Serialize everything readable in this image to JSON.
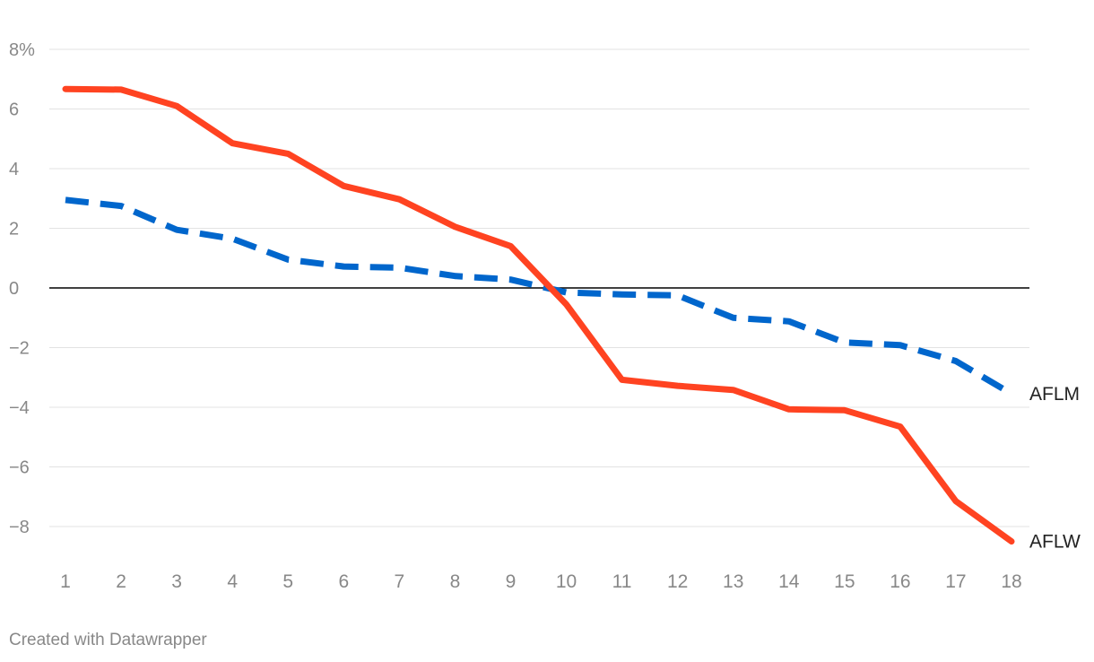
{
  "chart_data": {
    "type": "line",
    "title": "",
    "xlabel": "",
    "ylabel": "",
    "x": [
      1,
      2,
      3,
      4,
      5,
      6,
      7,
      8,
      9,
      10,
      11,
      12,
      13,
      14,
      15,
      16,
      17,
      18
    ],
    "x_tick_labels": [
      "1",
      "2",
      "3",
      "4",
      "5",
      "6",
      "7",
      "8",
      "9",
      "10",
      "11",
      "12",
      "13",
      "14",
      "15",
      "16",
      "17",
      "18"
    ],
    "ylim": [
      -9,
      8
    ],
    "y_ticks": [
      8,
      6,
      4,
      2,
      0,
      -2,
      -4,
      -6,
      -8
    ],
    "y_tick_labels": [
      "8%",
      "6",
      "4",
      "2",
      "0",
      "−2",
      "−4",
      "−6",
      "−8"
    ],
    "grid": true,
    "series": [
      {
        "name": "AFLW",
        "label": "AFLW",
        "color": "#ff4321",
        "style": "solid",
        "values": [
          6.67,
          6.65,
          6.1,
          4.85,
          4.5,
          3.42,
          2.97,
          2.05,
          1.4,
          -0.55,
          -3.08,
          -3.28,
          -3.42,
          -4.07,
          -4.1,
          -4.65,
          -7.15,
          -8.5
        ]
      },
      {
        "name": "AFLM",
        "label": "AFLM",
        "color": "#0066cc",
        "style": "dashed",
        "values": [
          2.95,
          2.75,
          1.95,
          1.65,
          0.95,
          0.72,
          0.68,
          0.4,
          0.28,
          -0.15,
          -0.22,
          -0.25,
          -1.0,
          -1.12,
          -1.83,
          -1.92,
          -2.45,
          -3.55
        ]
      }
    ]
  },
  "credit": "Created with Datawrapper"
}
